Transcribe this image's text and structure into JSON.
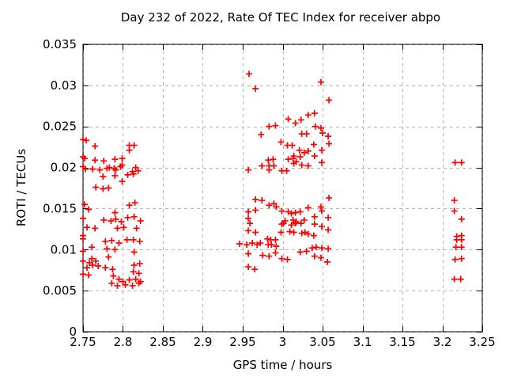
{
  "chart_data": {
    "type": "scatter",
    "title": "Day 232 of 2022, Rate Of TEC Index for receiver abpo",
    "xlabel": "GPS time / hours",
    "ylabel": "ROTI / TECUs",
    "xlim": [
      2.75,
      3.25
    ],
    "ylim": [
      0,
      0.035
    ],
    "xticks": [
      2.75,
      2.8,
      2.85,
      2.9,
      2.95,
      3.0,
      3.05,
      3.1,
      3.15,
      3.2,
      3.25
    ],
    "xtick_labels": [
      "2.75",
      "2.8",
      "2.85",
      "2.9",
      "2.95",
      "3",
      "3.05",
      "3.1",
      "3.15",
      "3.2",
      "3.25"
    ],
    "yticks": [
      0,
      0.005,
      0.01,
      0.015,
      0.02,
      0.025,
      0.03,
      0.035
    ],
    "ytick_labels": [
      "0",
      "0.005",
      "0.01",
      "0.015",
      "0.02",
      "0.025",
      "0.03",
      "0.035"
    ],
    "grid": true,
    "legend": false,
    "marker": {
      "shape": "plus",
      "color": "#ff0000",
      "size": 4,
      "stroke_width": 1.7
    },
    "frame_color": "#000000",
    "grid_color": "#b5b5b5",
    "series": [
      {
        "name": "ROTI",
        "points": [
          [
            2.75,
            0.0234
          ],
          [
            2.754,
            0.0233
          ],
          [
            2.765,
            0.0226
          ],
          [
            2.808,
            0.0227
          ],
          [
            2.814,
            0.0227
          ],
          [
            2.808,
            0.0221
          ],
          [
            2.75,
            0.0213
          ],
          [
            2.752,
            0.0211
          ],
          [
            2.765,
            0.0209
          ],
          [
            2.776,
            0.0208
          ],
          [
            2.79,
            0.021
          ],
          [
            2.799,
            0.0211
          ],
          [
            2.75,
            0.0201
          ],
          [
            2.753,
            0.0198
          ],
          [
            2.762,
            0.0198
          ],
          [
            2.771,
            0.0197
          ],
          [
            2.78,
            0.0199
          ],
          [
            2.783,
            0.02
          ],
          [
            2.789,
            0.0199
          ],
          [
            2.791,
            0.0197
          ],
          [
            2.797,
            0.0201
          ],
          [
            2.799,
            0.0203
          ],
          [
            2.816,
            0.02
          ],
          [
            2.812,
            0.0195
          ],
          [
            2.819,
            0.0196
          ],
          [
            2.775,
            0.0189
          ],
          [
            2.79,
            0.019
          ],
          [
            2.806,
            0.0191
          ],
          [
            2.813,
            0.0192
          ],
          [
            2.799,
            0.0183
          ],
          [
            2.766,
            0.0176
          ],
          [
            2.775,
            0.0174
          ],
          [
            2.782,
            0.0175
          ],
          [
            2.815,
            0.0157
          ],
          [
            2.808,
            0.0154
          ],
          [
            2.752,
            0.0155
          ],
          [
            2.757,
            0.0149
          ],
          [
            2.79,
            0.0145
          ],
          [
            2.75,
            0.0138
          ],
          [
            2.776,
            0.0136
          ],
          [
            2.785,
            0.0135
          ],
          [
            2.791,
            0.0137
          ],
          [
            2.798,
            0.0134
          ],
          [
            2.806,
            0.0139
          ],
          [
            2.814,
            0.014
          ],
          [
            2.822,
            0.0135
          ],
          [
            2.755,
            0.0127
          ],
          [
            2.765,
            0.0126
          ],
          [
            2.793,
            0.0126
          ],
          [
            2.801,
            0.0127
          ],
          [
            2.817,
            0.0126
          ],
          [
            2.75,
            0.0117
          ],
          [
            2.75,
            0.0113
          ],
          [
            2.778,
            0.011
          ],
          [
            2.786,
            0.0111
          ],
          [
            2.795,
            0.0108
          ],
          [
            2.805,
            0.0112
          ],
          [
            2.813,
            0.0112
          ],
          [
            2.821,
            0.011
          ],
          [
            2.761,
            0.0103
          ],
          [
            2.78,
            0.0101
          ],
          [
            2.79,
            0.01
          ],
          [
            2.75,
            0.0098
          ],
          [
            2.814,
            0.0097
          ],
          [
            2.761,
            0.0089
          ],
          [
            2.782,
            0.0091
          ],
          [
            2.75,
            0.0086
          ],
          [
            2.758,
            0.0084
          ],
          [
            2.766,
            0.0086
          ],
          [
            2.762,
            0.0081
          ],
          [
            2.769,
            0.008
          ],
          [
            2.755,
            0.0078
          ],
          [
            2.778,
            0.0078
          ],
          [
            2.787,
            0.0076
          ],
          [
            2.75,
            0.007
          ],
          [
            2.757,
            0.0069
          ],
          [
            2.814,
            0.0081
          ],
          [
            2.821,
            0.0083
          ],
          [
            2.813,
            0.0073
          ],
          [
            2.82,
            0.0071
          ],
          [
            2.788,
            0.0068
          ],
          [
            2.795,
            0.0064
          ],
          [
            2.8,
            0.0061
          ],
          [
            2.808,
            0.0063
          ],
          [
            2.816,
            0.0064
          ],
          [
            2.822,
            0.0061
          ],
          [
            2.786,
            0.0059
          ],
          [
            2.793,
            0.0056
          ],
          [
            2.803,
            0.0057
          ],
          [
            2.812,
            0.0056
          ],
          [
            2.82,
            0.0059
          ],
          [
            2.958,
            0.0314
          ],
          [
            2.966,
            0.0296
          ],
          [
            3.048,
            0.0304
          ],
          [
            3.058,
            0.0282
          ],
          [
            3.007,
            0.0259
          ],
          [
            3.032,
            0.0264
          ],
          [
            3.04,
            0.0266
          ],
          [
            3.023,
            0.0258
          ],
          [
            3.016,
            0.0254
          ],
          [
            2.983,
            0.025
          ],
          [
            2.991,
            0.0251
          ],
          [
            3.041,
            0.025
          ],
          [
            3.048,
            0.0248
          ],
          [
            3.05,
            0.0242
          ],
          [
            3.057,
            0.0238
          ],
          [
            2.973,
            0.024
          ],
          [
            3.024,
            0.0241
          ],
          [
            3.03,
            0.0241
          ],
          [
            2.998,
            0.0231
          ],
          [
            3.006,
            0.0227
          ],
          [
            3.012,
            0.0227
          ],
          [
            3.021,
            0.0221
          ],
          [
            3.027,
            0.0218
          ],
          [
            3.039,
            0.0228
          ],
          [
            3.049,
            0.0221
          ],
          [
            3.058,
            0.0229
          ],
          [
            3.032,
            0.022
          ],
          [
            3.04,
            0.0214
          ],
          [
            3.014,
            0.0214
          ],
          [
            2.982,
            0.0209
          ],
          [
            2.988,
            0.021
          ],
          [
            2.957,
            0.0197
          ],
          [
            2.974,
            0.0202
          ],
          [
            2.983,
            0.0202
          ],
          [
            2.983,
            0.0197
          ],
          [
            2.989,
            0.0202
          ],
          [
            3.007,
            0.021
          ],
          [
            3.013,
            0.0211
          ],
          [
            3.022,
            0.0213
          ],
          [
            2.999,
            0.0196
          ],
          [
            3.005,
            0.0196
          ],
          [
            3.014,
            0.0205
          ],
          [
            3.017,
            0.0207
          ],
          [
            3.024,
            0.0203
          ],
          [
            3.032,
            0.0202
          ],
          [
            3.049,
            0.0206
          ],
          [
            3.058,
            0.0163
          ],
          [
            2.966,
            0.0161
          ],
          [
            2.974,
            0.016
          ],
          [
            2.983,
            0.0154
          ],
          [
            2.989,
            0.0156
          ],
          [
            2.992,
            0.0152
          ],
          [
            2.957,
            0.0146
          ],
          [
            2.966,
            0.0148
          ],
          [
            2.957,
            0.0138
          ],
          [
            2.999,
            0.0147
          ],
          [
            3.007,
            0.0146
          ],
          [
            3.011,
            0.0144
          ],
          [
            3.016,
            0.0145
          ],
          [
            3.022,
            0.0146
          ],
          [
            3.032,
            0.0151
          ],
          [
            3.048,
            0.0152
          ],
          [
            3.049,
            0.0147
          ],
          [
            3.057,
            0.0139
          ],
          [
            3.04,
            0.014
          ],
          [
            3.027,
            0.0136
          ],
          [
            3.013,
            0.0136
          ],
          [
            3.017,
            0.0134
          ],
          [
            3.003,
            0.0135
          ],
          [
            2.999,
            0.0131
          ],
          [
            3.023,
            0.0132
          ],
          [
            2.959,
            0.0132
          ],
          [
            2.957,
            0.0123
          ],
          [
            2.966,
            0.0121
          ],
          [
            3.001,
            0.0132
          ],
          [
            3.011,
            0.013
          ],
          [
            3.016,
            0.0132
          ],
          [
            3.04,
            0.0131
          ],
          [
            3.049,
            0.0128
          ],
          [
            3.057,
            0.0124
          ],
          [
            2.998,
            0.0121
          ],
          [
            3.009,
            0.0122
          ],
          [
            3.014,
            0.0121
          ],
          [
            3.024,
            0.012
          ],
          [
            3.028,
            0.0121
          ],
          [
            3.032,
            0.0119
          ],
          [
            3.039,
            0.0117
          ],
          [
            2.981,
            0.0113
          ],
          [
            2.985,
            0.0112
          ],
          [
            2.991,
            0.0112
          ],
          [
            2.946,
            0.0107
          ],
          [
            2.955,
            0.0106
          ],
          [
            2.962,
            0.0108
          ],
          [
            2.968,
            0.0106
          ],
          [
            2.972,
            0.0108
          ],
          [
            2.982,
            0.0106
          ],
          [
            2.986,
            0.0106
          ],
          [
            2.992,
            0.0104
          ],
          [
            2.957,
            0.0095
          ],
          [
            2.975,
            0.0093
          ],
          [
            2.983,
            0.0092
          ],
          [
            2.991,
            0.0096
          ],
          [
            2.999,
            0.0089
          ],
          [
            3.006,
            0.0088
          ],
          [
            3.022,
            0.0097
          ],
          [
            3.03,
            0.0098
          ],
          [
            3.037,
            0.0102
          ],
          [
            3.042,
            0.0103
          ],
          [
            3.049,
            0.0102
          ],
          [
            3.057,
            0.0101
          ],
          [
            3.04,
            0.0092
          ],
          [
            3.048,
            0.009
          ],
          [
            3.056,
            0.0085
          ],
          [
            2.957,
            0.0079
          ],
          [
            2.965,
            0.0076
          ],
          [
            3.216,
            0.0206
          ],
          [
            3.224,
            0.0206
          ],
          [
            3.215,
            0.016
          ],
          [
            3.215,
            0.0147
          ],
          [
            3.224,
            0.0137
          ],
          [
            3.218,
            0.0116
          ],
          [
            3.224,
            0.0117
          ],
          [
            3.218,
            0.0112
          ],
          [
            3.224,
            0.0112
          ],
          [
            3.217,
            0.0103
          ],
          [
            3.224,
            0.0103
          ],
          [
            3.216,
            0.0088
          ],
          [
            3.224,
            0.0089
          ],
          [
            3.215,
            0.0064
          ],
          [
            3.223,
            0.0064
          ]
        ]
      }
    ]
  }
}
